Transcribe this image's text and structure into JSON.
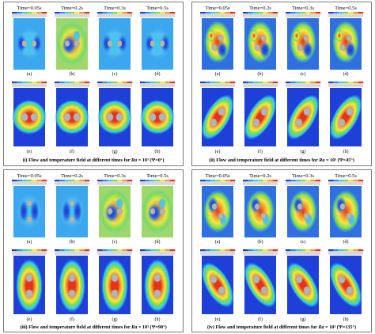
{
  "panels": [
    {
      "caption_prefix": "(i) Flow and temperature field at different times for ",
      "caption_var": "Ra",
      "caption_suffix": " = 10³ (Ψ=0°)",
      "times": [
        "Time=0.05s",
        "Time=0.2s",
        "Time=0.3s",
        "Time=0.5s"
      ],
      "labels_top": [
        "(a)",
        "(b)",
        "(c)",
        "(d)"
      ],
      "labels_bottom": [
        "(e)",
        "(f)",
        "(g)",
        "(h)"
      ]
    },
    {
      "caption_prefix": "(ii) Flow and temperature field at different times for ",
      "caption_var": "Ra",
      "caption_suffix": " = 10³ (Ψ=45°)",
      "times": [
        "Time=0.05s",
        "Time=0.2s",
        "Time=0.3s",
        "Time=0.5s"
      ],
      "labels_top": [
        "(a)",
        "(b)",
        "(c)",
        "(d)"
      ],
      "labels_bottom": [
        "(e)",
        "(f)",
        "(g)",
        "(h)"
      ]
    },
    {
      "caption_prefix": "(iii) Flow and temperature field at different times for ",
      "caption_var": "Ra",
      "caption_suffix": " = 10³ (Ψ=90°)",
      "times": [
        "Time=0.05s",
        "Time=0.2s",
        "Time=0.3s",
        "Time=0.5s"
      ],
      "labels_top": [
        "(a)",
        "(b)",
        "(c)",
        "(d)"
      ],
      "labels_bottom": [
        "(e)",
        "(f)",
        "(g)",
        "(h)"
      ]
    },
    {
      "caption_prefix": "(iv) Flow and temperature field at different times for ",
      "caption_var": "Ra",
      "caption_suffix": " = 10³ (Ψ=135°)",
      "times": [
        "Time=0.05s",
        "Time=0.2s",
        "Time=0.3s",
        "Time=0.5s"
      ],
      "labels_top": [
        "(a)",
        "(b)",
        "(c)",
        "(d)"
      ],
      "labels_bottom": [
        "(e)",
        "(f)",
        "(g)",
        "(h)"
      ]
    }
  ],
  "colors": {
    "field_blue": "#1e3fd8",
    "cold": "#2b8cf0",
    "cyan": "#33ccee",
    "green": "#7ddc4a",
    "yellow": "#f4e842",
    "orange": "#f59a2a",
    "hot": "#e8321c",
    "cylinder": "#b4b4b4",
    "border": "#7a7a7a"
  }
}
